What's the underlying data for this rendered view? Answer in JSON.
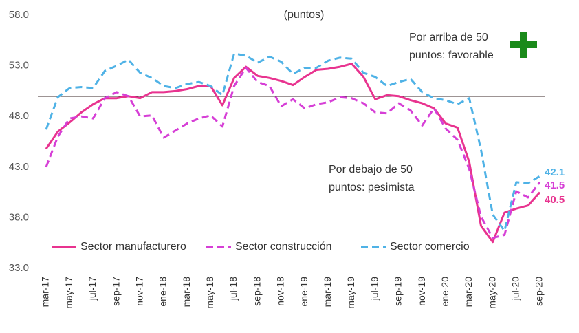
{
  "chart_data": {
    "type": "line",
    "subtitle": "(puntos)",
    "categories": [
      "mar-17",
      null,
      "may-17",
      null,
      "jul-17",
      null,
      "sep-17",
      null,
      "nov-17",
      null,
      "ene-18",
      null,
      "mar-18",
      null,
      "may-18",
      null,
      "jul-18",
      null,
      "sep-18",
      null,
      "nov-18",
      null,
      "ene-19",
      null,
      "mar-19",
      null,
      "may-19",
      null,
      "jul-19",
      null,
      "sep-19",
      null,
      "nov-19",
      null,
      "ene-20",
      null,
      "mar-20",
      null,
      "may-20",
      null,
      "jul-20",
      null,
      "sep-20"
    ],
    "series": [
      {
        "name": "Sector manufacturero",
        "color": "#e8338f",
        "dash": "solid",
        "values": [
          44.8,
          46.5,
          47.4,
          48.4,
          49.2,
          49.8,
          49.8,
          50.0,
          49.8,
          50.4,
          50.4,
          50.5,
          50.7,
          51.0,
          51.0,
          49.1,
          51.8,
          52.9,
          52.0,
          51.8,
          51.5,
          51.1,
          51.9,
          52.6,
          52.7,
          52.9,
          53.2,
          51.9,
          49.7,
          50.1,
          50.0,
          49.6,
          49.3,
          48.8,
          47.3,
          46.9,
          43.5,
          37.2,
          35.6,
          38.5,
          38.9,
          39.2,
          40.5
        ]
      },
      {
        "name": "Sector construcción",
        "color": "#d63fd6",
        "dash": "dashed",
        "values": [
          43.0,
          46.0,
          47.8,
          48.0,
          47.8,
          49.8,
          50.4,
          50.0,
          48.0,
          48.1,
          45.9,
          46.6,
          47.3,
          47.8,
          48.1,
          47.0,
          51.0,
          52.8,
          51.4,
          51.0,
          49.0,
          49.7,
          48.8,
          49.2,
          49.4,
          49.9,
          49.8,
          49.3,
          48.4,
          48.3,
          49.3,
          48.6,
          47.1,
          48.8,
          46.8,
          45.7,
          42.8,
          38.1,
          36.0,
          36.3,
          40.6,
          40.0,
          41.5
        ]
      },
      {
        "name": "Sector comercio",
        "color": "#4fb2e6",
        "dash": "dashed",
        "values": [
          46.7,
          49.9,
          50.8,
          50.9,
          50.8,
          52.5,
          53.0,
          53.6,
          52.3,
          51.8,
          51.0,
          50.8,
          51.2,
          51.4,
          51.0,
          50.1,
          54.2,
          54.0,
          53.3,
          53.9,
          53.4,
          52.2,
          52.8,
          52.8,
          53.5,
          53.8,
          53.7,
          52.3,
          51.9,
          51.0,
          51.4,
          51.7,
          50.4,
          49.8,
          49.6,
          49.2,
          49.8,
          44.7,
          38.3,
          36.7,
          41.5,
          41.4,
          42.1
        ]
      }
    ],
    "ylim": [
      33,
      58
    ],
    "yticks": [
      {
        "value": 33,
        "label": "33.0"
      },
      {
        "value": 38,
        "label": "38.0"
      },
      {
        "value": 43,
        "label": "43.0"
      },
      {
        "value": 48,
        "label": "48.0"
      },
      {
        "value": 53,
        "label": "53.0"
      },
      {
        "value": 58,
        "label": "58.0"
      }
    ],
    "reference_line": 50,
    "annotations": [
      {
        "lines": [
          "Por arriba de 50",
          "puntos: favorable"
        ]
      },
      {
        "lines": [
          "Por debajo de 50",
          "puntos: pesimista"
        ]
      }
    ],
    "legend": "bottom-left"
  }
}
